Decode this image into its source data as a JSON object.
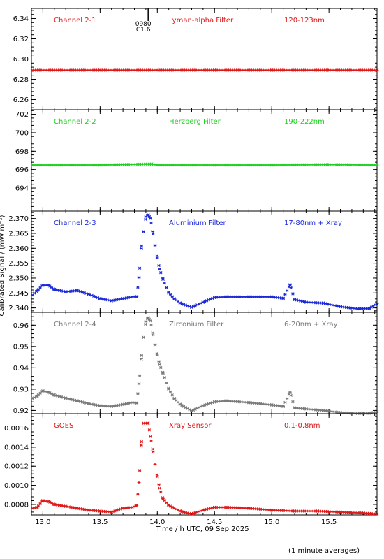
{
  "ylabel": "Calibrated Signal / (mW m⁻²)",
  "xlabel": "Time / h UTC, 09 Sep 2025",
  "footnote": "(1 minute averages)",
  "flare_marker": {
    "time": 13.92,
    "labels": [
      "0980",
      "C1.6"
    ]
  },
  "x_axis": {
    "min": 12.9,
    "max": 15.92,
    "ticks": [
      13.0,
      13.5,
      14.0,
      14.5,
      15.0,
      15.5
    ],
    "tick_labels": [
      "13.0",
      "13.5",
      "14.0",
      "14.5",
      "15.0",
      "15.5"
    ]
  },
  "chart_data": [
    {
      "type": "scatter",
      "color": "#e01818",
      "labels": [
        "Channel 2-1",
        "Lyman-alpha Filter",
        "120-123nm"
      ],
      "ylim": [
        6.25,
        6.35
      ],
      "yticks": [
        6.26,
        6.28,
        6.3,
        6.32,
        6.34
      ],
      "ytick_labels": [
        "6.26",
        "6.28",
        "6.30",
        "6.32",
        "6.34"
      ],
      "points": [
        [
          12.91,
          6.289
        ],
        [
          13.5,
          6.289
        ],
        [
          14.0,
          6.289
        ],
        [
          14.5,
          6.289
        ],
        [
          15.0,
          6.289
        ],
        [
          15.5,
          6.289
        ],
        [
          15.92,
          6.289
        ]
      ]
    },
    {
      "type": "scatter",
      "color": "#20d020",
      "labels": [
        "Channel 2-2",
        "Herzberg Filter",
        "190-222nm"
      ],
      "ylim": [
        691.5,
        702.5
      ],
      "yticks": [
        694,
        696,
        698,
        700,
        702
      ],
      "ytick_labels": [
        "694",
        "696",
        "698",
        "700",
        "702"
      ],
      "points": [
        [
          12.91,
          696.5
        ],
        [
          13.5,
          696.5
        ],
        [
          13.9,
          696.6
        ],
        [
          13.95,
          696.6
        ],
        [
          14.0,
          696.5
        ],
        [
          14.5,
          696.5
        ],
        [
          15.0,
          696.5
        ],
        [
          15.5,
          696.55
        ],
        [
          15.92,
          696.5
        ]
      ]
    },
    {
      "type": "scatter",
      "color": "#1a28d8",
      "labels": [
        "Channel 2-3",
        "Aluminium Filter",
        "17-80nm + Xray"
      ],
      "ylim": [
        2.3385,
        2.3725
      ],
      "yticks": [
        2.34,
        2.345,
        2.35,
        2.355,
        2.36,
        2.365,
        2.37
      ],
      "ytick_labels": [
        "2.340",
        "2.345",
        "2.350",
        "2.355",
        "2.360",
        "2.365",
        "2.370"
      ],
      "points": [
        [
          12.91,
          2.3443
        ],
        [
          12.95,
          2.3458
        ],
        [
          13.0,
          2.3476
        ],
        [
          13.05,
          2.3476
        ],
        [
          13.1,
          2.3462
        ],
        [
          13.2,
          2.3454
        ],
        [
          13.3,
          2.3458
        ],
        [
          13.4,
          2.3446
        ],
        [
          13.5,
          2.3431
        ],
        [
          13.6,
          2.3424
        ],
        [
          13.7,
          2.3431
        ],
        [
          13.78,
          2.3437
        ],
        [
          13.82,
          2.3438
        ],
        [
          13.84,
          2.3502
        ],
        [
          13.86,
          2.3599
        ],
        [
          13.88,
          2.3656
        ],
        [
          13.9,
          2.3706
        ],
        [
          13.92,
          2.3713
        ],
        [
          13.94,
          2.37
        ],
        [
          13.96,
          2.3656
        ],
        [
          13.98,
          2.361
        ],
        [
          14.0,
          2.3568
        ],
        [
          14.02,
          2.353
        ],
        [
          14.05,
          2.3496
        ],
        [
          14.1,
          2.345
        ],
        [
          14.15,
          2.343
        ],
        [
          14.2,
          2.3416
        ],
        [
          14.3,
          2.3402
        ],
        [
          14.4,
          2.3419
        ],
        [
          14.5,
          2.3435
        ],
        [
          14.6,
          2.3437
        ],
        [
          14.8,
          2.3437
        ],
        [
          15.0,
          2.3437
        ],
        [
          15.1,
          2.3432
        ],
        [
          15.16,
          2.3477
        ],
        [
          15.2,
          2.3428
        ],
        [
          15.3,
          2.3419
        ],
        [
          15.45,
          2.3416
        ],
        [
          15.6,
          2.3404
        ],
        [
          15.75,
          2.3397
        ],
        [
          15.85,
          2.3398
        ],
        [
          15.92,
          2.3414
        ]
      ]
    },
    {
      "type": "scatter",
      "color": "#7a7a7a",
      "labels": [
        "Channel 2-4",
        "Zirconium Filter",
        "6-20nm + Xray"
      ],
      "ylim": [
        0.9185,
        0.966
      ],
      "yticks": [
        0.92,
        0.93,
        0.94,
        0.95,
        0.96
      ],
      "ytick_labels": [
        "0.92",
        "0.93",
        "0.94",
        "0.95",
        "0.96"
      ],
      "points": [
        [
          12.91,
          0.9256
        ],
        [
          12.95,
          0.9268
        ],
        [
          13.0,
          0.9292
        ],
        [
          13.05,
          0.9285
        ],
        [
          13.1,
          0.9272
        ],
        [
          13.2,
          0.9258
        ],
        [
          13.3,
          0.9245
        ],
        [
          13.4,
          0.9232
        ],
        [
          13.5,
          0.9222
        ],
        [
          13.6,
          0.9219
        ],
        [
          13.7,
          0.9228
        ],
        [
          13.78,
          0.9237
        ],
        [
          13.82,
          0.9235
        ],
        [
          13.84,
          0.9325
        ],
        [
          13.86,
          0.9442
        ],
        [
          13.88,
          0.9543
        ],
        [
          13.9,
          0.9617
        ],
        [
          13.92,
          0.9636
        ],
        [
          13.94,
          0.962
        ],
        [
          13.96,
          0.9564
        ],
        [
          13.98,
          0.9508
        ],
        [
          14.0,
          0.946
        ],
        [
          14.02,
          0.9415
        ],
        [
          14.05,
          0.9375
        ],
        [
          14.1,
          0.93
        ],
        [
          14.15,
          0.9255
        ],
        [
          14.2,
          0.9228
        ],
        [
          14.3,
          0.9198
        ],
        [
          14.4,
          0.9223
        ],
        [
          14.5,
          0.924
        ],
        [
          14.6,
          0.9245
        ],
        [
          14.8,
          0.9237
        ],
        [
          15.0,
          0.9226
        ],
        [
          15.1,
          0.9219
        ],
        [
          15.16,
          0.9284
        ],
        [
          15.2,
          0.9212
        ],
        [
          15.3,
          0.9207
        ],
        [
          15.45,
          0.92
        ],
        [
          15.6,
          0.919
        ],
        [
          15.75,
          0.9186
        ],
        [
          15.85,
          0.9187
        ],
        [
          15.92,
          0.9194
        ]
      ]
    },
    {
      "type": "scatter",
      "color": "#e01818",
      "labels": [
        "GOES",
        "Xray Sensor",
        "0.1-0.8nm"
      ],
      "ylim": [
        0.00069,
        0.00175
      ],
      "yticks": [
        0.0008,
        0.001,
        0.0012,
        0.0014,
        0.0016
      ],
      "ytick_labels": [
        "0.0008",
        "0.0010",
        "0.0012",
        "0.0014",
        "0.0016"
      ],
      "points": [
        [
          12.91,
          0.00076
        ],
        [
          12.95,
          0.00077
        ],
        [
          13.0,
          0.00084
        ],
        [
          13.05,
          0.00083
        ],
        [
          13.1,
          0.0008
        ],
        [
          13.2,
          0.00078
        ],
        [
          13.3,
          0.00076
        ],
        [
          13.4,
          0.00074
        ],
        [
          13.5,
          0.00073
        ],
        [
          13.6,
          0.00072
        ],
        [
          13.7,
          0.00076
        ],
        [
          13.78,
          0.00077
        ],
        [
          13.82,
          0.00079
        ],
        [
          13.84,
          0.00103
        ],
        [
          13.86,
          0.00142
        ],
        [
          13.88,
          0.00165
        ],
        [
          13.9,
          0.00165
        ],
        [
          13.92,
          0.00165
        ],
        [
          13.94,
          0.00151
        ],
        [
          13.96,
          0.00138
        ],
        [
          13.98,
          0.00122
        ],
        [
          14.0,
          0.00109
        ],
        [
          14.02,
          0.00097
        ],
        [
          14.05,
          0.00086
        ],
        [
          14.1,
          0.00079
        ],
        [
          14.2,
          0.00073
        ],
        [
          14.3,
          0.0007
        ],
        [
          14.4,
          0.00074
        ],
        [
          14.5,
          0.00077
        ],
        [
          14.6,
          0.00077
        ],
        [
          14.8,
          0.00076
        ],
        [
          15.0,
          0.00074
        ],
        [
          15.2,
          0.00073
        ],
        [
          15.4,
          0.00073
        ],
        [
          15.6,
          0.00072
        ],
        [
          15.8,
          0.00071
        ],
        [
          15.92,
          0.0007
        ]
      ]
    }
  ]
}
